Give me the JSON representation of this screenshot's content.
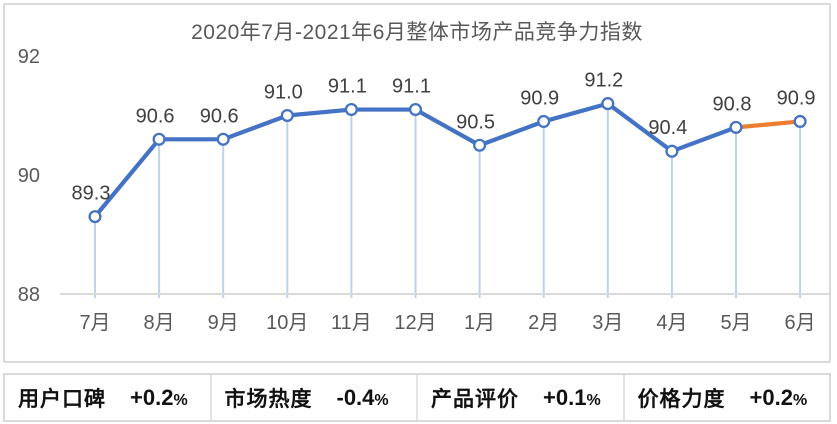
{
  "chart_data": {
    "type": "line",
    "title": "2020年7月-2021年6月整体市场产品竞争力指数",
    "categories": [
      "7月",
      "8月",
      "9月",
      "10月",
      "11月",
      "12月",
      "1月",
      "2月",
      "3月",
      "4月",
      "5月",
      "6月"
    ],
    "values": [
      89.3,
      90.6,
      90.6,
      91.0,
      91.1,
      91.1,
      90.5,
      90.9,
      91.2,
      90.4,
      90.8,
      90.9
    ],
    "data_labels": [
      "89.3",
      "90.6",
      "90.6",
      "91.0",
      "91.1",
      "91.1",
      "90.5",
      "90.9",
      "91.2",
      "90.4",
      "90.8",
      "90.9"
    ],
    "ylim": [
      88,
      92
    ],
    "yticks": [
      88,
      90,
      92
    ],
    "ytick_labels": [
      "88",
      "90",
      "92"
    ],
    "grid": false,
    "legend": "none",
    "line_color": "#4472C4",
    "highlight_color": "#ED7D31",
    "highlight_segment_from_index": 10,
    "marker_style": "open-circle",
    "marker_fill": "#FFFFFF",
    "drop_lines": true,
    "drop_line_color": "#BDD2EC",
    "axis_line_color": "#D9D9D9",
    "data_label_color": "#3F3F3F",
    "tick_label_color": "#595959"
  },
  "stats": {
    "items": [
      {
        "label": "用户口碑",
        "value": "+0.2",
        "unit": "%"
      },
      {
        "label": "市场热度",
        "value": "-0.4",
        "unit": "%"
      },
      {
        "label": "产品评价",
        "value": "+0.1",
        "unit": "%"
      },
      {
        "label": "价格力度",
        "value": "+0.2",
        "unit": "%"
      }
    ]
  }
}
